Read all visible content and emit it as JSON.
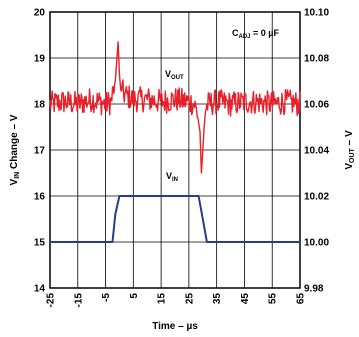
{
  "chart_data": {
    "type": "line",
    "title": "",
    "annotations": [
      {
        "main": "C",
        "sub": "ADJ",
        "rest": " = 0 µF"
      },
      {
        "main": "V",
        "sub": "OUT",
        "rest": ""
      },
      {
        "main": "V",
        "sub": "IN",
        "rest": ""
      }
    ],
    "xlabel": "Time – µs",
    "ylabel_left": {
      "main": "V",
      "sub": "IN",
      "rest": " Change – V"
    },
    "ylabel_right": {
      "main": "V",
      "sub": "OUT",
      "rest": " – V"
    },
    "x_ticks": [
      "-25",
      "-15",
      "-5",
      "5",
      "15",
      "25",
      "35",
      "45",
      "55",
      "65"
    ],
    "y_ticks_left": [
      "20",
      "19",
      "18",
      "17",
      "16",
      "15",
      "14"
    ],
    "y_ticks_right": [
      "10.10",
      "10.08",
      "10.06",
      "10.04",
      "10.02",
      "10.00",
      "9.98"
    ],
    "xlim": [
      -25,
      65
    ],
    "ylim_left": [
      14,
      20
    ],
    "ylim_right": [
      9.98,
      10.1
    ],
    "grid": true,
    "colors": {
      "vout": "#e8202a",
      "vin": "#2b3a8f"
    },
    "series": [
      {
        "name": "V_IN",
        "axis": "left",
        "x": [
          -25,
          -2.5,
          -1.5,
          0,
          20,
          28.5,
          30,
          31.5,
          65
        ],
        "y": [
          15.0,
          15.0,
          15.6,
          16.0,
          16.0,
          16.0,
          15.5,
          15.0,
          15.0
        ]
      },
      {
        "name": "V_OUT",
        "axis": "right",
        "x": [
          -25,
          -20,
          -15,
          -10,
          -5,
          -3,
          -1.5,
          -0.5,
          0,
          0.5,
          2,
          5,
          10,
          15,
          20,
          25,
          27,
          28,
          29,
          29.5,
          30,
          30.5,
          31,
          32,
          35,
          40,
          45,
          50,
          55,
          60,
          65
        ],
        "y": [
          10.06,
          10.061,
          10.06,
          10.062,
          10.06,
          10.061,
          10.07,
          10.087,
          10.073,
          10.066,
          10.064,
          10.062,
          10.062,
          10.061,
          10.062,
          10.061,
          10.06,
          10.056,
          10.048,
          10.03,
          10.04,
          10.05,
          10.058,
          10.06,
          10.061,
          10.06,
          10.061,
          10.061,
          10.06,
          10.061,
          10.06
        ]
      }
    ]
  }
}
